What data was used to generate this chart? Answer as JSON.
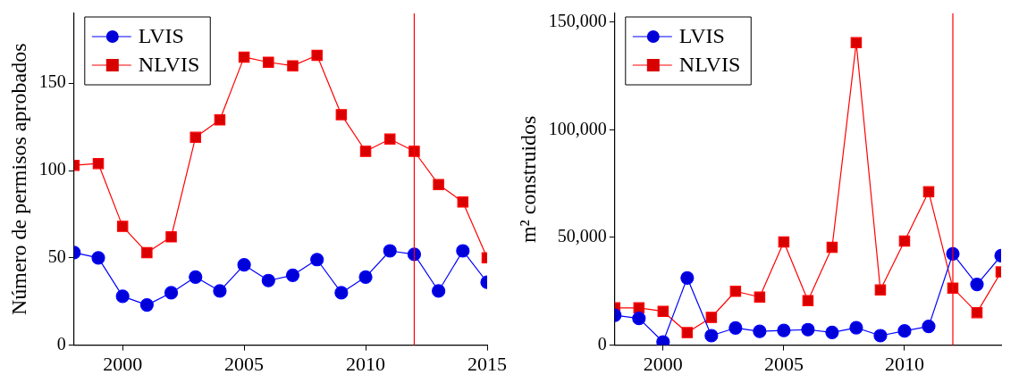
{
  "chart_data": [
    {
      "type": "line",
      "ylabel": "Número de permisos aprobados",
      "x": [
        1998,
        1999,
        2000,
        2001,
        2002,
        2003,
        2004,
        2005,
        2006,
        2007,
        2008,
        2009,
        2010,
        2011,
        2012,
        2013,
        2014,
        2015
      ],
      "series": [
        {
          "name": "LVIS",
          "color": "#0000ff",
          "marker": "circle",
          "values": [
            53,
            50,
            28,
            23,
            30,
            39,
            31,
            46,
            37,
            40,
            49,
            30,
            39,
            54,
            52,
            31,
            54,
            36
          ]
        },
        {
          "name": "NLVIS",
          "color": "#ff0000",
          "marker": "square",
          "values": [
            103,
            104,
            68,
            53,
            62,
            119,
            129,
            165,
            162,
            160,
            166,
            132,
            111,
            118,
            111,
            92,
            82,
            50
          ]
        }
      ],
      "xlim": [
        1998,
        2015
      ],
      "xticks": [
        2000,
        2005,
        2010,
        2015
      ],
      "ylim": [
        0,
        190
      ],
      "yticks": [
        0,
        50,
        100,
        150
      ],
      "ref_lines": [
        {
          "axis": "x",
          "value": 2012,
          "color": "#ff0000"
        }
      ],
      "legend": "top left",
      "grid": false
    },
    {
      "type": "line",
      "ylabel": "m² construidos",
      "x": [
        1998,
        1999,
        2000,
        2001,
        2002,
        2003,
        2004,
        2005,
        2006,
        2007,
        2008,
        2009,
        2010,
        2011,
        2012,
        2013,
        2014
      ],
      "series": [
        {
          "name": "LVIS",
          "color": "#0000ff",
          "marker": "circle",
          "values": [
            13900,
            12400,
            1500,
            31200,
            4400,
            8000,
            6400,
            6800,
            7200,
            5900,
            8100,
            4400,
            6600,
            8700,
            42400,
            28200,
            41500
          ]
        },
        {
          "name": "NLVIS",
          "color": "#ff0000",
          "marker": "square",
          "values": [
            17300,
            17300,
            15700,
            5800,
            12900,
            25000,
            22300,
            47900,
            20700,
            45400,
            140400,
            25600,
            48300,
            71200,
            26500,
            15100,
            34000
          ]
        }
      ],
      "xlim": [
        1998,
        2014
      ],
      "xticks": [
        2000,
        2005,
        2010
      ],
      "ylim": [
        0,
        154000
      ],
      "yticks": [
        {
          "value": 0,
          "label": "0"
        },
        {
          "value": 50000,
          "label": "50,000"
        },
        {
          "value": 100000,
          "label": "100,000"
        },
        {
          "value": 150000,
          "label": "150,000"
        }
      ],
      "ref_lines": [
        {
          "axis": "x",
          "value": 2012,
          "color": "#ff0000"
        }
      ],
      "legend": "top left",
      "grid": false
    }
  ]
}
